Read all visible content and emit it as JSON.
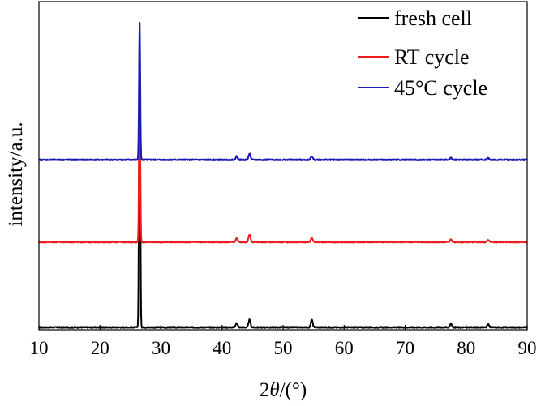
{
  "chart_data": {
    "type": "line",
    "xlabel_prefix": "2",
    "xlabel_var": "θ",
    "xlabel_suffix": "/(°)",
    "ylabel": "intensity/a.u.",
    "xlim": [
      10,
      90
    ],
    "xticks": [
      "10",
      "20",
      "30",
      "40",
      "50",
      "60",
      "70",
      "80",
      "90"
    ],
    "yticks_shown": false,
    "legend_position": "top-right",
    "series": [
      {
        "name": "fresh cell",
        "color": "#000000",
        "baseline": 0.0,
        "peaks": [
          {
            "x": 26.5,
            "height": 1.0
          },
          {
            "x": 42.4,
            "height": 0.015
          },
          {
            "x": 44.5,
            "height": 0.025
          },
          {
            "x": 54.7,
            "height": 0.025
          },
          {
            "x": 77.5,
            "height": 0.012
          },
          {
            "x": 83.6,
            "height": 0.01
          }
        ]
      },
      {
        "name": "RT cycle",
        "color": "#ee1c1c",
        "baseline": 0.28,
        "peaks": [
          {
            "x": 26.5,
            "height": 0.53
          },
          {
            "x": 42.4,
            "height": 0.012
          },
          {
            "x": 44.5,
            "height": 0.025
          },
          {
            "x": 54.7,
            "height": 0.015
          },
          {
            "x": 77.5,
            "height": 0.008
          },
          {
            "x": 83.6,
            "height": 0.006
          }
        ]
      },
      {
        "name": "45°C cycle",
        "color": "#1a1ab8",
        "baseline": 0.55,
        "peaks": [
          {
            "x": 26.5,
            "height": 0.45
          },
          {
            "x": 42.4,
            "height": 0.012
          },
          {
            "x": 44.5,
            "height": 0.02
          },
          {
            "x": 54.7,
            "height": 0.012
          },
          {
            "x": 77.5,
            "height": 0.007
          },
          {
            "x": 83.6,
            "height": 0.006
          }
        ]
      }
    ]
  }
}
